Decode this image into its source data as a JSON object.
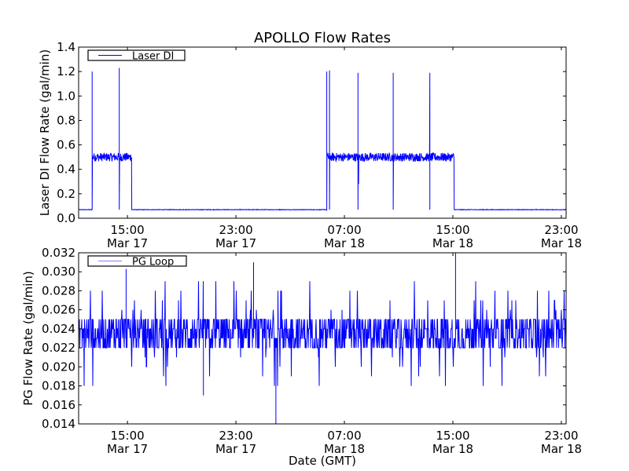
{
  "chart_data": [
    {
      "type": "line",
      "title": "APOLLO Flow Rates",
      "xlabel": "",
      "ylabel": "Laser DI Flow Rate (gal/min)",
      "x_units": "hours since Mar 17 00:00 GMT",
      "xlim": [
        11.4,
        47.35
      ],
      "ylim": [
        0.0,
        1.4
      ],
      "yticks": [
        0.0,
        0.2,
        0.4,
        0.6,
        0.8,
        1.0,
        1.2,
        1.4
      ],
      "ytick_labels": [
        "0.0",
        "0.2",
        "0.4",
        "0.6",
        "0.8",
        "1.0",
        "1.2",
        "1.4"
      ],
      "xticks": [
        15,
        23,
        31,
        39,
        47
      ],
      "xtick_labels": [
        [
          "15:00",
          "Mar 17"
        ],
        [
          "23:00",
          "Mar 17"
        ],
        [
          "07:00",
          "Mar 18"
        ],
        [
          "15:00",
          "Mar 18"
        ],
        [
          "23:00",
          "Mar 18"
        ]
      ],
      "legend": {
        "label": "Laser DI",
        "placement": "top-left"
      },
      "color": "#0000ff",
      "series": [
        {
          "name": "Laser DI",
          "baseline": 0.07,
          "on_level": 0.5,
          "on_periods": [
            [
              12.4,
              15.3
            ],
            [
              29.7,
              39.1
            ]
          ],
          "spikes": [
            {
              "x": 12.4,
              "high": 1.2,
              "low": 0.07
            },
            {
              "x": 14.4,
              "high": 1.23,
              "low": 0.07
            },
            {
              "x": 29.7,
              "high": 1.2,
              "low": 0.07
            },
            {
              "x": 29.9,
              "high": 1.21,
              "low": 0.07
            },
            {
              "x": 32.0,
              "high": 1.19,
              "low": 0.07
            },
            {
              "x": 32.05,
              "high": 0.5,
              "low": 0.28
            },
            {
              "x": 34.6,
              "high": 1.19,
              "low": 0.07
            },
            {
              "x": 37.3,
              "high": 1.19,
              "low": 0.07
            }
          ]
        }
      ]
    },
    {
      "type": "line",
      "title": "",
      "xlabel": "Date (GMT)",
      "ylabel": "PG Flow Rate (gal/min)",
      "x_units": "hours since Mar 17 00:00 GMT",
      "xlim": [
        11.4,
        47.35
      ],
      "ylim": [
        0.014,
        0.032
      ],
      "yticks": [
        0.014,
        0.016,
        0.018,
        0.02,
        0.022,
        0.024,
        0.026,
        0.028,
        0.03,
        0.032
      ],
      "ytick_labels": [
        "0.014",
        "0.016",
        "0.018",
        "0.020",
        "0.022",
        "0.024",
        "0.026",
        "0.028",
        "0.030",
        "0.032"
      ],
      "xticks": [
        15,
        23,
        31,
        39,
        47
      ],
      "xtick_labels": [
        [
          "15:00",
          "Mar 17"
        ],
        [
          "23:00",
          "Mar 17"
        ],
        [
          "07:00",
          "Mar 18"
        ],
        [
          "15:00",
          "Mar 18"
        ],
        [
          "23:00",
          "Mar 18"
        ]
      ],
      "legend": {
        "label": "PG Loop",
        "placement": "top-left"
      },
      "color": "#0000ff",
      "series": [
        {
          "name": "PG Loop",
          "typical_range": [
            0.022,
            0.025
          ],
          "occasional_range": [
            0.018,
            0.029
          ],
          "spikes": [
            {
              "x": 14.9,
              "value": 0.0303
            },
            {
              "x": 20.6,
              "value": 0.017
            },
            {
              "x": 24.3,
              "value": 0.031
            },
            {
              "x": 25.95,
              "value": 0.014
            },
            {
              "x": 39.2,
              "value": 0.032
            }
          ]
        }
      ]
    }
  ]
}
